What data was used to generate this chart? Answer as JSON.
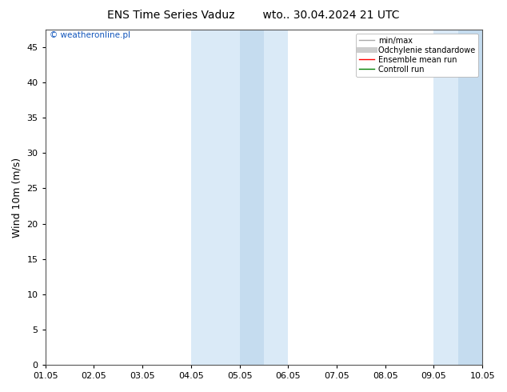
{
  "title_left": "ENS Time Series Vaduz",
  "title_right": "wto.. 30.04.2024 21 UTC",
  "ylabel": "Wind 10m (m/s)",
  "watermark": "© weatheronline.pl",
  "xticklabels": [
    "01.05",
    "02.05",
    "03.05",
    "04.05",
    "05.05",
    "06.05",
    "07.05",
    "08.05",
    "09.05",
    "10.05"
  ],
  "yticks": [
    0,
    5,
    10,
    15,
    20,
    25,
    30,
    35,
    40,
    45
  ],
  "ylim": [
    0,
    47.5
  ],
  "xlim_min": 0,
  "xlim_max": 9,
  "shade_regions": [
    {
      "x_start": 3.0,
      "x_end": 5.0,
      "color": "#daeaf7"
    },
    {
      "x_start": 8.0,
      "x_end": 9.0,
      "color": "#daeaf7"
    }
  ],
  "inner_strips": [
    {
      "x_start": 4.0,
      "x_end": 4.5,
      "color": "#c5dcef"
    },
    {
      "x_start": 8.5,
      "x_end": 9.0,
      "color": "#c5dcef"
    }
  ],
  "legend_entries": [
    {
      "label": "min/max",
      "color": "#aaaaaa",
      "lw": 1.0
    },
    {
      "label": "Odchylenie standardowe",
      "color": "#cccccc",
      "lw": 5
    },
    {
      "label": "Ensemble mean run",
      "color": "red",
      "lw": 1.0
    },
    {
      "label": "Controll run",
      "color": "green",
      "lw": 1.0
    }
  ],
  "background_color": "#ffffff",
  "plot_bg_color": "#ffffff",
  "title_fontsize": 10,
  "axis_fontsize": 8,
  "ylabel_fontsize": 9,
  "watermark_color": "#1155bb",
  "grid_color": "#dddddd",
  "spine_color": "#555555"
}
